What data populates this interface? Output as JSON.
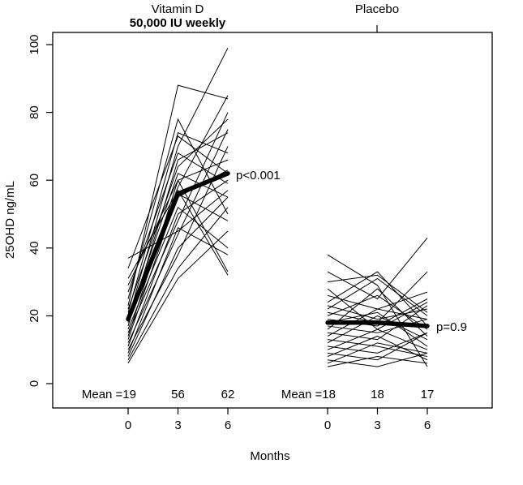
{
  "colors": {
    "line": "#000000",
    "subtitle": "#e82863",
    "background": "#ffffff"
  },
  "chart_data": {
    "type": "line",
    "xlabel": "Months",
    "ylabel": "25OHD ng/mL",
    "ylim": [
      0,
      100
    ],
    "yticks": [
      0,
      20,
      40,
      60,
      80,
      100
    ],
    "months": [
      0,
      3,
      6
    ],
    "grid": "off",
    "legend": "none",
    "description": "Spaghetti plot of individual 25OHD trajectories with thick group-mean lines",
    "groups": [
      {
        "label": "Vitamin D",
        "subtitle": "50,000 IU weekly",
        "means": [
          19,
          56,
          62
        ],
        "mean_row": [
          "Mean =19",
          "56",
          "62"
        ],
        "p_label": "p<0.001",
        "subjects": [
          [
            6,
            31,
            45
          ],
          [
            7,
            34,
            52
          ],
          [
            8,
            40,
            55
          ],
          [
            9,
            46,
            38
          ],
          [
            10,
            38,
            70
          ],
          [
            11,
            50,
            60
          ],
          [
            12,
            44,
            75
          ],
          [
            13,
            56,
            48
          ],
          [
            14,
            60,
            66
          ],
          [
            15,
            48,
            80
          ],
          [
            16,
            52,
            40
          ],
          [
            17,
            66,
            74
          ],
          [
            18,
            58,
            85
          ],
          [
            19,
            62,
            55
          ],
          [
            19,
            70,
            99
          ],
          [
            20,
            55,
            63
          ],
          [
            21,
            74,
            68
          ],
          [
            22,
            64,
            78
          ],
          [
            23,
            88,
            84
          ],
          [
            25,
            78,
            50
          ],
          [
            27,
            68,
            59
          ],
          [
            29,
            60,
            33
          ],
          [
            31,
            57,
            32
          ],
          [
            34,
            73,
            62
          ],
          [
            37,
            45,
            57
          ]
        ]
      },
      {
        "label": "Placebo",
        "subtitle": "",
        "means": [
          18,
          18,
          17
        ],
        "mean_row": [
          "Mean =18",
          "18",
          "17"
        ],
        "p_label": "p=0.9",
        "subjects": [
          [
            5,
            8,
            6
          ],
          [
            6,
            12,
            9
          ],
          [
            7,
            5,
            9
          ],
          [
            8,
            14,
            7
          ],
          [
            9,
            7,
            15
          ],
          [
            10,
            16,
            10
          ],
          [
            11,
            9,
            15
          ],
          [
            12,
            20,
            13
          ],
          [
            13,
            11,
            8
          ],
          [
            14,
            22,
            19
          ],
          [
            15,
            13,
            23
          ],
          [
            16,
            28,
            14
          ],
          [
            17,
            15,
            19
          ],
          [
            18,
            21,
            11
          ],
          [
            19,
            17,
            25
          ],
          [
            20,
            26,
            16
          ],
          [
            21,
            18,
            33
          ],
          [
            22,
            31,
            20
          ],
          [
            23,
            19,
            22
          ],
          [
            24,
            33,
            17
          ],
          [
            26,
            22,
            27
          ],
          [
            28,
            16,
            24
          ],
          [
            30,
            32,
            21
          ],
          [
            33,
            25,
            43
          ],
          [
            38,
            29,
            5
          ]
        ]
      }
    ]
  }
}
